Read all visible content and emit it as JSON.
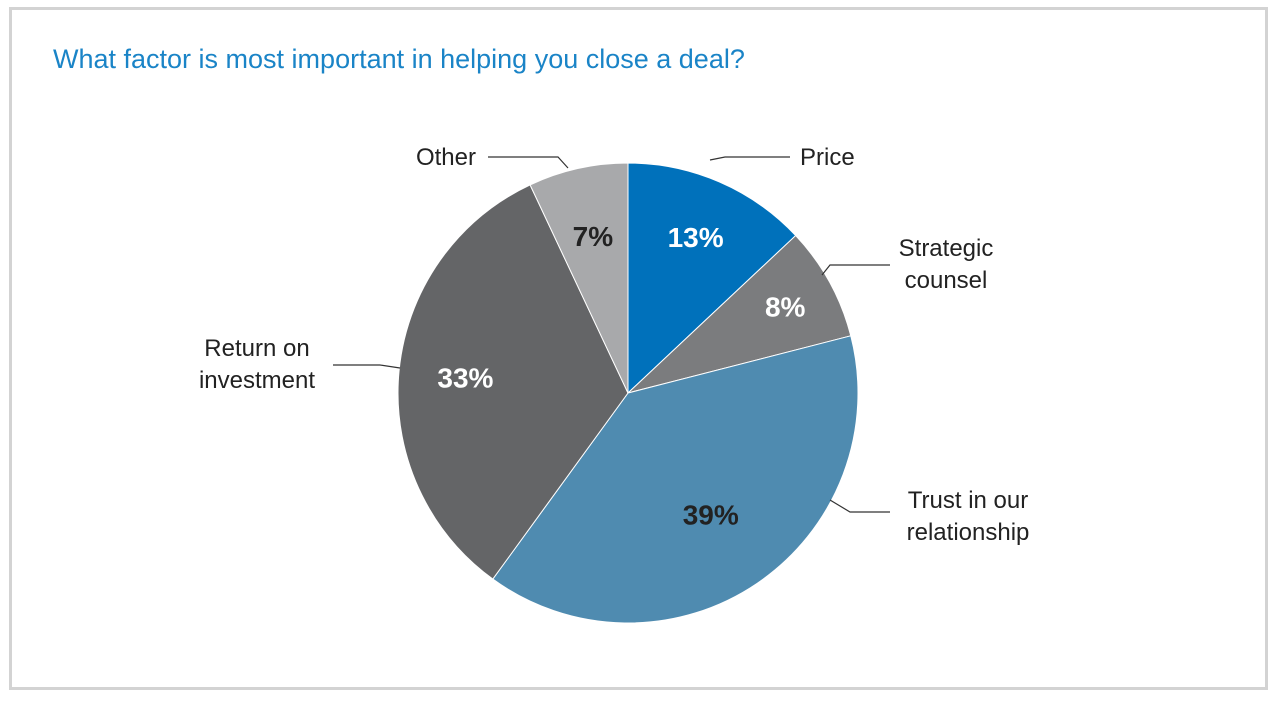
{
  "chart_data": {
    "type": "pie",
    "title": "What factor is most important in helping you close a deal?",
    "slices": [
      {
        "label": [
          "Price"
        ],
        "value": 13,
        "value_label": "13%",
        "color": "#0071bb",
        "text_color": "#ffffff"
      },
      {
        "label": [
          "Strategic",
          "counsel"
        ],
        "value": 8,
        "value_label": "8%",
        "color": "#7b7c7e",
        "text_color": "#ffffff"
      },
      {
        "label": [
          "Trust in our",
          "relationship"
        ],
        "value": 39,
        "value_label": "39%",
        "color": "#4f8bb0",
        "text_color": "#222222"
      },
      {
        "label": [
          "Return on",
          "investment"
        ],
        "value": 33,
        "value_label": "33%",
        "color": "#646567",
        "text_color": "#ffffff"
      },
      {
        "label": [
          "Other"
        ],
        "value": 7,
        "value_label": "7%",
        "color": "#a8a9ab",
        "text_color": "#222222"
      }
    ],
    "start_angle_deg": 0,
    "direction": "clockwise",
    "legend": "none (leader-line labels)"
  }
}
